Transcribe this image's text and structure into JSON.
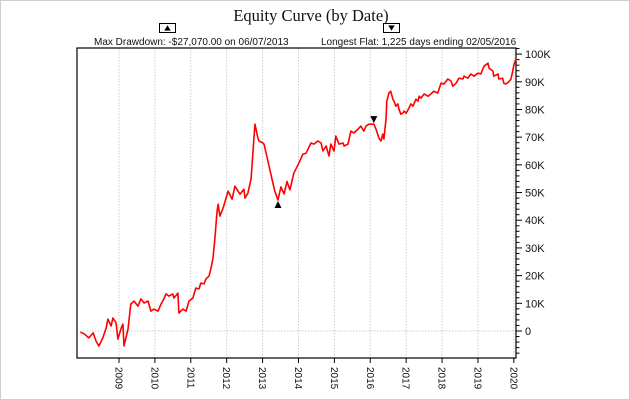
{
  "title": "Equity Curve (by Date)",
  "legend": {
    "max_drawdown": {
      "symbol": "▲",
      "label": "Max Drawdown: -$27,070.00 on 06/07/2013"
    },
    "longest_flat": {
      "symbol": "▼",
      "label": "Longest Flat: 1,225 days ending 02/05/2016"
    }
  },
  "colors": {
    "line": "#ff0000",
    "grid": "#cccccc",
    "axis": "#000000",
    "marker": "#000000",
    "text": "#111111"
  },
  "chart_data": {
    "type": "line",
    "title": "Equity Curve (by Date)",
    "xlabel": "",
    "ylabel": "",
    "x_range": [
      2007.83,
      2020.06
    ],
    "y_range": [
      -9750,
      102200
    ],
    "x_tick_values": [
      2009,
      2010,
      2011,
      2012,
      2013,
      2014,
      2015,
      2016,
      2017,
      2018,
      2019,
      2020
    ],
    "x_tick_labels": [
      "2009",
      "2010",
      "2011",
      "2012",
      "2013",
      "2014",
      "2015",
      "2016",
      "2017",
      "2018",
      "2019",
      "2020"
    ],
    "y_tick_values": [
      0,
      10000,
      20000,
      30000,
      40000,
      50000,
      60000,
      70000,
      80000,
      90000,
      100000
    ],
    "y_tick_labels": [
      "0",
      "10K",
      "20K",
      "30K",
      "40K",
      "50K",
      "60K",
      "70K",
      "80K",
      "90K",
      "100K"
    ],
    "y_minor": {
      "step": 2000,
      "min": -8000,
      "max": 102000
    },
    "grid": {
      "vertical": true,
      "horizontal_at": 0,
      "legend_position": "top"
    },
    "series": [
      {
        "name": "Equity",
        "color": "#ff0000",
        "x": [
          2007.94,
          2008.03,
          2008.16,
          2008.28,
          2008.36,
          2008.44,
          2008.55,
          2008.64,
          2008.69,
          2008.78,
          2008.83,
          2008.92,
          2008.97,
          2009.06,
          2009.11,
          2009.14,
          2009.25,
          2009.33,
          2009.42,
          2009.53,
          2009.61,
          2009.7,
          2009.81,
          2009.89,
          2009.97,
          2010.09,
          2010.17,
          2010.25,
          2010.31,
          2010.39,
          2010.5,
          2010.53,
          2010.64,
          2010.67,
          2010.78,
          2010.87,
          2010.95,
          2011.06,
          2011.14,
          2011.23,
          2011.28,
          2011.37,
          2011.42,
          2011.51,
          2011.56,
          2011.62,
          2011.67,
          2011.73,
          2011.76,
          2011.81,
          2011.9,
          2012.04,
          2012.15,
          2012.23,
          2012.37,
          2012.48,
          2012.51,
          2012.59,
          2012.68,
          2012.76,
          2012.79,
          2012.87,
          2012.9,
          2013.01,
          2013.04,
          2013.12,
          2013.18,
          2013.26,
          2013.34,
          2013.43,
          2013.51,
          2013.6,
          2013.68,
          2013.76,
          2013.87,
          2014.01,
          2014.12,
          2014.21,
          2014.35,
          2014.43,
          2014.54,
          2014.63,
          2014.68,
          2014.77,
          2014.85,
          2014.9,
          2014.99,
          2015.04,
          2015.13,
          2015.24,
          2015.27,
          2015.38,
          2015.46,
          2015.54,
          2015.66,
          2015.74,
          2015.82,
          2015.88,
          2015.96,
          2016.1,
          2016.16,
          2016.24,
          2016.3,
          2016.35,
          2016.38,
          2016.44,
          2016.46,
          2016.52,
          2016.57,
          2016.63,
          2016.66,
          2016.71,
          2016.77,
          2016.8,
          2016.85,
          2016.91,
          2016.94,
          2017.0,
          2017.08,
          2017.13,
          2017.19,
          2017.27,
          2017.33,
          2017.36,
          2017.41,
          2017.5,
          2017.61,
          2017.69,
          2017.77,
          2017.88,
          2017.97,
          2018.05,
          2018.16,
          2018.25,
          2018.3,
          2018.39,
          2018.47,
          2018.58,
          2018.61,
          2018.72,
          2018.8,
          2018.89,
          2019.0,
          2019.08,
          2019.17,
          2019.28,
          2019.31,
          2019.42,
          2019.44,
          2019.56,
          2019.58,
          2019.69,
          2019.72,
          2019.78,
          2019.86,
          2019.92,
          2019.97,
          2020.0,
          2020.06
        ],
        "y": [
          -500,
          -1000,
          -2500,
          -700,
          -3600,
          -5400,
          -2500,
          1000,
          4300,
          1800,
          4700,
          2900,
          -2900,
          1000,
          2500,
          -5400,
          700,
          9700,
          10800,
          9000,
          11600,
          10100,
          10800,
          7200,
          7900,
          7200,
          9700,
          11600,
          13400,
          12600,
          13400,
          11900,
          13700,
          6500,
          7900,
          7200,
          10800,
          11900,
          15500,
          15200,
          17300,
          17000,
          18800,
          19900,
          22500,
          26400,
          33000,
          43000,
          45800,
          41500,
          44400,
          50500,
          47600,
          52300,
          49400,
          51200,
          48000,
          49800,
          55000,
          70000,
          74700,
          69700,
          68600,
          67900,
          67500,
          63000,
          59600,
          55000,
          50500,
          47300,
          52000,
          49500,
          54000,
          51000,
          57000,
          60600,
          63800,
          64200,
          67900,
          67500,
          68600,
          67900,
          65000,
          66800,
          63200,
          67500,
          65000,
          70400,
          67500,
          67900,
          66800,
          67500,
          72200,
          71500,
          72900,
          74000,
          72200,
          74000,
          74700,
          74700,
          72900,
          69700,
          68600,
          71100,
          69300,
          76900,
          83000,
          85900,
          86600,
          83700,
          83000,
          81200,
          82000,
          80100,
          78300,
          78700,
          79400,
          78700,
          80500,
          82000,
          81200,
          83700,
          83000,
          84800,
          84100,
          85600,
          84800,
          85600,
          86600,
          85900,
          89500,
          89200,
          91000,
          90300,
          88400,
          89500,
          91300,
          91000,
          92000,
          91300,
          92800,
          92000,
          93100,
          92800,
          95700,
          96700,
          94900,
          93800,
          92000,
          92800,
          91000,
          91300,
          89500,
          89200,
          90000,
          91000,
          94000,
          96000,
          98200
        ]
      }
    ],
    "annotations": [
      {
        "name": "max-drawdown-point",
        "symbol": "▲",
        "x": 2013.43,
        "y": 47300,
        "position": "below",
        "label": "Max Drawdown: -$27,070.00 on 06/07/2013"
      },
      {
        "name": "longest-flat-end-point",
        "symbol": "▼",
        "x": 2016.1,
        "y": 74700,
        "position": "above",
        "label": "Longest Flat: 1,225 days ending 02/05/2016"
      }
    ]
  }
}
